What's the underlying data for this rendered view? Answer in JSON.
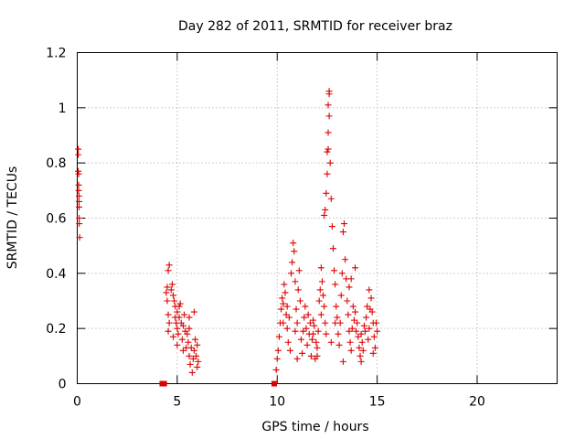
{
  "chart_data": {
    "type": "scatter",
    "title": "Day 282 of 2011, SRMTID for receiver braz",
    "xlabel": "GPS time / hours",
    "ylabel": "SRMTID / TECUs",
    "xlim": [
      0,
      24
    ],
    "ylim": [
      0,
      1.2
    ],
    "xticks": [
      0,
      5,
      10,
      15,
      20
    ],
    "xtick_labels": [
      "0",
      "5",
      "10",
      "15",
      "20"
    ],
    "yticks": [
      0,
      0.2,
      0.4,
      0.6,
      0.8,
      1,
      1.2
    ],
    "ytick_labels": [
      "0",
      "0.2",
      "0.4",
      "0.6",
      "0.8",
      "1",
      "1.2"
    ],
    "grid": true,
    "marker_color": "#dd0000",
    "series": [
      {
        "marker": "plus",
        "points": [
          [
            0.05,
            0.85
          ],
          [
            0.05,
            0.83
          ],
          [
            0.05,
            0.77
          ],
          [
            0.07,
            0.76
          ],
          [
            0.07,
            0.72
          ],
          [
            0.07,
            0.7
          ],
          [
            0.09,
            0.68
          ],
          [
            0.09,
            0.66
          ],
          [
            0.09,
            0.64
          ],
          [
            0.1,
            0.6
          ],
          [
            0.1,
            0.58
          ],
          [
            0.12,
            0.53
          ],
          [
            4.45,
            0.33
          ],
          [
            4.5,
            0.35
          ],
          [
            4.55,
            0.41
          ],
          [
            4.6,
            0.43
          ],
          [
            4.5,
            0.3
          ],
          [
            4.55,
            0.25
          ],
          [
            4.6,
            0.22
          ],
          [
            4.55,
            0.19
          ],
          [
            4.7,
            0.34
          ],
          [
            4.75,
            0.36
          ],
          [
            4.8,
            0.32
          ],
          [
            4.85,
            0.3
          ],
          [
            4.9,
            0.28
          ],
          [
            4.9,
            0.24
          ],
          [
            4.95,
            0.22
          ],
          [
            5.0,
            0.26
          ],
          [
            5.0,
            0.2
          ],
          [
            5.05,
            0.18
          ],
          [
            5.1,
            0.24
          ],
          [
            5.1,
            0.28
          ],
          [
            5.15,
            0.29
          ],
          [
            5.2,
            0.22
          ],
          [
            5.25,
            0.16
          ],
          [
            5.3,
            0.21
          ],
          [
            5.35,
            0.25
          ],
          [
            5.4,
            0.19
          ],
          [
            5.45,
            0.13
          ],
          [
            5.5,
            0.18
          ],
          [
            5.55,
            0.15
          ],
          [
            5.6,
            0.1
          ],
          [
            5.6,
            0.2
          ],
          [
            5.65,
            0.07
          ],
          [
            5.7,
            0.13
          ],
          [
            5.75,
            0.04
          ],
          [
            5.8,
            0.09
          ],
          [
            5.85,
            0.12
          ],
          [
            5.9,
            0.16
          ],
          [
            5.95,
            0.1
          ],
          [
            6.0,
            0.06
          ],
          [
            6.0,
            0.14
          ],
          [
            6.05,
            0.08
          ],
          [
            4.8,
            0.17
          ],
          [
            5.0,
            0.14
          ],
          [
            5.3,
            0.12
          ],
          [
            5.6,
            0.24
          ],
          [
            5.85,
            0.26
          ],
          [
            9.95,
            0.05
          ],
          [
            10.0,
            0.09
          ],
          [
            10.05,
            0.12
          ],
          [
            10.1,
            0.17
          ],
          [
            10.15,
            0.22
          ],
          [
            10.2,
            0.27
          ],
          [
            10.25,
            0.31
          ],
          [
            10.3,
            0.29
          ],
          [
            10.35,
            0.36
          ],
          [
            10.4,
            0.33
          ],
          [
            10.45,
            0.25
          ],
          [
            10.5,
            0.2
          ],
          [
            10.55,
            0.15
          ],
          [
            10.6,
            0.24
          ],
          [
            10.65,
            0.12
          ],
          [
            10.7,
            0.4
          ],
          [
            10.75,
            0.44
          ],
          [
            10.8,
            0.51
          ],
          [
            10.85,
            0.48
          ],
          [
            10.9,
            0.37
          ],
          [
            10.95,
            0.27
          ],
          [
            11.0,
            0.22
          ],
          [
            11.05,
            0.34
          ],
          [
            11.1,
            0.41
          ],
          [
            11.15,
            0.3
          ],
          [
            11.2,
            0.16
          ],
          [
            11.25,
            0.11
          ],
          [
            11.3,
            0.19
          ],
          [
            11.35,
            0.24
          ],
          [
            11.4,
            0.28
          ],
          [
            11.45,
            0.2
          ],
          [
            11.5,
            0.14
          ],
          [
            11.55,
            0.25
          ],
          [
            11.6,
            0.18
          ],
          [
            11.65,
            0.22
          ],
          [
            11.7,
            0.1
          ],
          [
            11.75,
            0.16
          ],
          [
            11.8,
            0.23
          ],
          [
            11.85,
            0.21
          ],
          [
            11.9,
            0.09
          ],
          [
            11.95,
            0.15
          ],
          [
            12.0,
            0.13
          ],
          [
            12.05,
            0.19
          ],
          [
            12.1,
            0.3
          ],
          [
            12.15,
            0.34
          ],
          [
            12.2,
            0.42
          ],
          [
            12.25,
            0.37
          ],
          [
            12.3,
            0.32
          ],
          [
            12.35,
            0.28
          ],
          [
            12.4,
            0.22
          ],
          [
            12.45,
            0.18
          ],
          [
            12.35,
            0.61
          ],
          [
            12.4,
            0.63
          ],
          [
            12.45,
            0.69
          ],
          [
            12.5,
            0.76
          ],
          [
            12.5,
            0.84
          ],
          [
            12.55,
            0.85
          ],
          [
            12.55,
            0.91
          ],
          [
            12.55,
            1.01
          ],
          [
            12.6,
            1.05
          ],
          [
            12.6,
            1.06
          ],
          [
            12.6,
            0.97
          ],
          [
            12.65,
            0.8
          ],
          [
            12.7,
            0.67
          ],
          [
            12.75,
            0.57
          ],
          [
            12.8,
            0.49
          ],
          [
            12.85,
            0.41
          ],
          [
            12.9,
            0.36
          ],
          [
            12.95,
            0.28
          ],
          [
            13.0,
            0.24
          ],
          [
            13.05,
            0.18
          ],
          [
            13.1,
            0.14
          ],
          [
            13.15,
            0.22
          ],
          [
            13.2,
            0.32
          ],
          [
            13.25,
            0.4
          ],
          [
            13.3,
            0.55
          ],
          [
            13.35,
            0.58
          ],
          [
            13.4,
            0.45
          ],
          [
            13.45,
            0.38
          ],
          [
            13.5,
            0.3
          ],
          [
            13.55,
            0.25
          ],
          [
            13.6,
            0.19
          ],
          [
            13.65,
            0.15
          ],
          [
            13.7,
            0.12
          ],
          [
            13.75,
            0.2
          ],
          [
            13.8,
            0.28
          ],
          [
            13.85,
            0.23
          ],
          [
            13.9,
            0.26
          ],
          [
            13.95,
            0.19
          ],
          [
            14.0,
            0.22
          ],
          [
            14.05,
            0.17
          ],
          [
            14.1,
            0.13
          ],
          [
            14.15,
            0.1
          ],
          [
            14.2,
            0.18
          ],
          [
            14.25,
            0.15
          ],
          [
            14.3,
            0.12
          ],
          [
            14.35,
            0.21
          ],
          [
            14.4,
            0.19
          ],
          [
            14.45,
            0.24
          ],
          [
            14.5,
            0.28
          ],
          [
            14.55,
            0.16
          ],
          [
            14.6,
            0.2
          ],
          [
            14.65,
            0.27
          ],
          [
            14.7,
            0.31
          ],
          [
            14.75,
            0.26
          ],
          [
            14.8,
            0.22
          ],
          [
            14.85,
            0.17
          ],
          [
            14.9,
            0.13
          ],
          [
            14.95,
            0.22
          ],
          [
            15.0,
            0.19
          ],
          [
            13.9,
            0.42
          ],
          [
            13.7,
            0.38
          ],
          [
            12.0,
            0.1
          ],
          [
            11.0,
            0.09
          ],
          [
            10.3,
            0.22
          ],
          [
            10.5,
            0.28
          ],
          [
            11.8,
            0.18
          ],
          [
            12.9,
            0.22
          ],
          [
            13.3,
            0.08
          ],
          [
            14.8,
            0.11
          ],
          [
            14.2,
            0.08
          ],
          [
            13.6,
            0.35
          ],
          [
            14.6,
            0.34
          ],
          [
            10.9,
            0.19
          ],
          [
            12.2,
            0.25
          ],
          [
            12.7,
            0.15
          ]
        ]
      },
      {
        "marker": "square",
        "points": [
          [
            4.25,
            0.0
          ],
          [
            4.35,
            0.0
          ],
          [
            9.85,
            0.0
          ]
        ]
      }
    ]
  }
}
